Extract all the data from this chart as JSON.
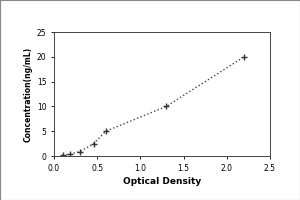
{
  "x_data": [
    0.1,
    0.19,
    0.3,
    0.46,
    0.6,
    1.3,
    2.2
  ],
  "y_data": [
    0.15,
    0.4,
    0.9,
    2.5,
    5.0,
    10.0,
    20.0
  ],
  "xlabel": "Optical Density",
  "ylabel": "Concentration(ng/mL)",
  "xlim": [
    0,
    2.5
  ],
  "ylim": [
    0,
    25
  ],
  "xticks": [
    0,
    0.5,
    1,
    1.5,
    2,
    2.5
  ],
  "yticks": [
    0,
    5,
    10,
    15,
    20,
    25
  ],
  "line_color": "#444444",
  "marker_color": "#333333",
  "marker_style": "+",
  "bg_color": "#ffffff",
  "outer_border_color": "#bbbbbb",
  "xlabel_fontsize": 6.5,
  "ylabel_fontsize": 5.5,
  "tick_fontsize": 5.5,
  "figsize": [
    3.0,
    2.0
  ],
  "dpi": 100
}
